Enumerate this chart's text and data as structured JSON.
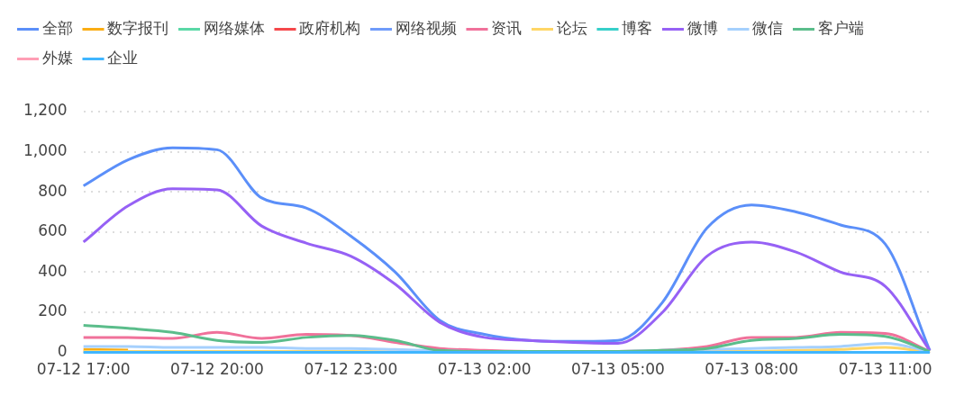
{
  "chart_data": {
    "type": "line",
    "categories": [
      "07-12 17:00",
      null,
      null,
      "07-12 20:00",
      null,
      null,
      "07-12 23:00",
      null,
      null,
      "07-13 02:00",
      null,
      null,
      "07-13 05:00",
      null,
      null,
      "07-13 08:00",
      null,
      null,
      "07-13 11:00",
      null
    ],
    "series": [
      {
        "name": "全部",
        "color": "#5b8ff9",
        "values": [
          830,
          960,
          1020,
          1010,
          770,
          720,
          580,
          400,
          160,
          90,
          60,
          55,
          60,
          250,
          620,
          735,
          700,
          635,
          540,
          10
        ]
      },
      {
        "name": "数字报刊",
        "color": "#faad14",
        "values": [
          15,
          12,
          null,
          null,
          null,
          null,
          null,
          null,
          null,
          null,
          null,
          null,
          null,
          null,
          null,
          null,
          null,
          null,
          null,
          null
        ]
      },
      {
        "name": "网络媒体",
        "color": "#5ad8a6",
        "values": [
          null,
          null,
          null,
          null,
          null,
          null,
          null,
          null,
          null,
          null,
          null,
          null,
          null,
          null,
          null,
          null,
          null,
          null,
          null,
          null
        ]
      },
      {
        "name": "政府机构",
        "color": "#f5484b",
        "values": [
          null,
          null,
          null,
          null,
          null,
          null,
          null,
          null,
          null,
          null,
          null,
          null,
          null,
          null,
          null,
          null,
          null,
          null,
          null,
          null
        ]
      },
      {
        "name": "网络视频",
        "color": "#6f9bfa",
        "values": [
          null,
          null,
          null,
          null,
          null,
          null,
          null,
          null,
          null,
          null,
          null,
          null,
          null,
          null,
          null,
          null,
          null,
          null,
          null,
          null
        ]
      },
      {
        "name": "资讯",
        "color": "#f0719a",
        "values": [
          75,
          75,
          70,
          100,
          70,
          90,
          85,
          50,
          20,
          10,
          5,
          5,
          5,
          10,
          30,
          75,
          75,
          100,
          95,
          5
        ]
      },
      {
        "name": "论坛",
        "color": "#ffd666",
        "values": [
          5,
          5,
          5,
          5,
          5,
          5,
          5,
          3,
          2,
          2,
          2,
          2,
          2,
          3,
          5,
          5,
          10,
          15,
          25,
          0
        ]
      },
      {
        "name": "博客",
        "color": "#36cfc9",
        "values": [
          null,
          null,
          null,
          null,
          null,
          null,
          null,
          null,
          null,
          null,
          null,
          null,
          null,
          null,
          null,
          null,
          null,
          null,
          null,
          null
        ]
      },
      {
        "name": "微博",
        "color": "#9661f5",
        "values": [
          550,
          730,
          815,
          810,
          630,
          545,
          480,
          340,
          150,
          75,
          60,
          50,
          45,
          200,
          480,
          550,
          500,
          400,
          330,
          10
        ]
      },
      {
        "name": "微信",
        "color": "#a5d0fd",
        "values": [
          30,
          30,
          25,
          25,
          25,
          20,
          20,
          15,
          8,
          5,
          5,
          5,
          5,
          10,
          15,
          20,
          25,
          30,
          45,
          5
        ]
      },
      {
        "name": "客户端",
        "color": "#5bbd8b",
        "values": [
          135,
          120,
          100,
          60,
          50,
          75,
          85,
          60,
          10,
          5,
          5,
          5,
          5,
          10,
          20,
          60,
          70,
          90,
          80,
          5
        ]
      },
      {
        "name": "外媒",
        "color": "#ff9eb5",
        "values": [
          null,
          null,
          null,
          null,
          null,
          null,
          null,
          null,
          null,
          null,
          null,
          null,
          null,
          null,
          null,
          null,
          null,
          null,
          null,
          null
        ]
      },
      {
        "name": "企业",
        "color": "#40b6ff",
        "values": [
          0,
          0,
          0,
          0,
          0,
          0,
          0,
          0,
          0,
          0,
          0,
          0,
          0,
          0,
          0,
          0,
          0,
          0,
          0,
          0
        ]
      }
    ],
    "ylim": [
      0,
      1200
    ],
    "yticks": [
      0,
      {
        "value": 200,
        "label": "200"
      },
      {
        "value": 400,
        "label": "400"
      },
      {
        "value": 600,
        "label": "600"
      },
      {
        "value": 800,
        "label": "800"
      },
      {
        "value": 1000,
        "label": "1,000"
      },
      {
        "value": 1200,
        "label": "1,200"
      }
    ],
    "grid": "y",
    "legend": "top left",
    "marker": "none",
    "line_style": "solid"
  }
}
